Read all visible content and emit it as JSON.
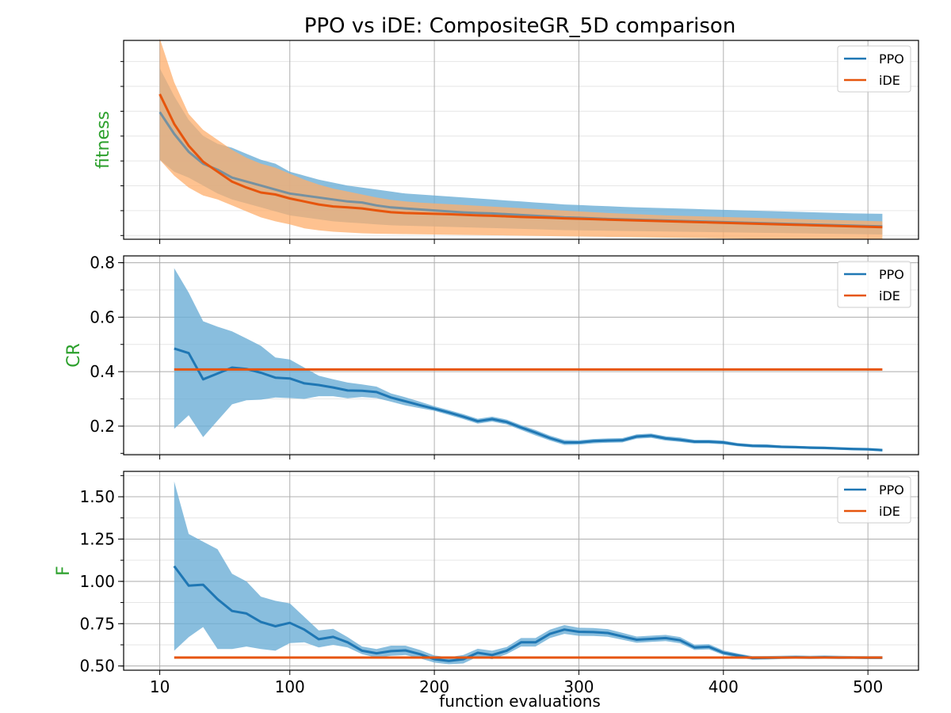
{
  "figure": {
    "title": "PPO vs iDE: CompositeGR_5D comparison",
    "xlabel": "function evaluations"
  },
  "colors": {
    "ppo": "#1f77b4",
    "ppo_band": "#6baed6",
    "ide": "#e6550d",
    "ide_band": "#fdae6b",
    "ylabel": "#2ca02c"
  },
  "chart_data": [
    {
      "type": "line",
      "ylabel": "fitness",
      "xlim": [
        -15,
        535
      ],
      "ylim": [
        0,
        100
      ],
      "xticks": [
        10,
        100,
        200,
        300,
        400,
        500
      ],
      "yticks": [],
      "show_xtick_labels": false,
      "grid": true,
      "legend": "top-right",
      "series": [
        {
          "name": "PPO",
          "x": [
            10,
            20,
            30,
            40,
            50,
            60,
            70,
            80,
            90,
            100,
            110,
            120,
            130,
            140,
            150,
            160,
            170,
            180,
            190,
            200,
            210,
            220,
            230,
            240,
            250,
            260,
            270,
            280,
            290,
            300,
            310,
            320,
            330,
            340,
            350,
            360,
            370,
            380,
            390,
            400,
            410,
            420,
            430,
            440,
            450,
            460,
            470,
            480,
            490,
            500,
            510
          ],
          "mean": [
            64,
            53,
            44,
            38,
            35,
            31,
            29,
            27,
            25,
            23,
            22,
            21,
            20,
            19,
            18.5,
            17,
            16,
            15.5,
            15,
            14.5,
            14,
            13.5,
            13.2,
            13,
            12.6,
            12.2,
            11.8,
            11.4,
            11,
            10.8,
            10.5,
            10.2,
            10,
            9.8,
            9.6,
            9.4,
            9.2,
            9,
            8.8,
            8.6,
            8.4,
            8.2,
            8,
            7.8,
            7.6,
            7.4,
            7.2,
            7,
            6.8,
            6.6,
            6.5
          ],
          "lower": [
            40,
            34,
            31,
            27,
            23,
            20,
            18,
            16,
            14,
            12,
            11,
            10,
            9,
            8.5,
            8,
            7.5,
            7,
            6.8,
            6.6,
            6.4,
            6.2,
            6,
            5.8,
            5.6,
            5.4,
            5.2,
            5,
            4.8,
            4.6,
            4.5,
            4.4,
            4.3,
            4.2,
            4.1,
            4,
            3.9,
            3.8,
            3.7,
            3.6,
            3.5,
            3.4,
            3.3,
            3.2,
            3.1,
            3,
            2.9,
            2.8,
            2.7,
            2.6,
            2.5,
            2.4
          ],
          "upper": [
            86,
            72,
            60,
            52,
            48,
            46,
            43,
            40,
            38,
            34,
            32,
            30,
            28.5,
            27,
            26,
            25,
            24,
            23,
            22.5,
            22,
            21.5,
            21,
            20.5,
            20,
            19.5,
            19,
            18.5,
            18,
            17.5,
            17.2,
            16.9,
            16.6,
            16.3,
            16,
            15.8,
            15.6,
            15.4,
            15.2,
            15,
            14.8,
            14.6,
            14.4,
            14.2,
            14,
            13.8,
            13.6,
            13.4,
            13.2,
            13,
            12.9,
            12.8
          ]
        },
        {
          "name": "iDE",
          "x": [
            10,
            20,
            30,
            40,
            50,
            60,
            70,
            80,
            90,
            100,
            110,
            120,
            130,
            140,
            150,
            160,
            170,
            180,
            190,
            200,
            210,
            220,
            230,
            240,
            250,
            260,
            270,
            280,
            290,
            300,
            310,
            320,
            330,
            340,
            350,
            360,
            370,
            380,
            390,
            400,
            410,
            420,
            430,
            440,
            450,
            460,
            470,
            480,
            490,
            500,
            510
          ],
          "mean": [
            73,
            58,
            47,
            39,
            34,
            29,
            26,
            23.5,
            22.5,
            20.5,
            19,
            17.5,
            16.5,
            16,
            15.5,
            14.5,
            13.6,
            13.2,
            13,
            12.8,
            12.6,
            12.3,
            12,
            11.8,
            11.5,
            11.2,
            11,
            10.8,
            10.5,
            10.3,
            10.1,
            9.9,
            9.7,
            9.5,
            9.3,
            9.1,
            8.9,
            8.7,
            8.5,
            8.3,
            8.1,
            7.9,
            7.7,
            7.5,
            7.3,
            7.1,
            6.9,
            6.7,
            6.5,
            6.3,
            6.1
          ],
          "lower": [
            40,
            32,
            26,
            22,
            20,
            17,
            14,
            11,
            9,
            7.5,
            5.5,
            4.5,
            3.8,
            3.4,
            3,
            2.8,
            2.7,
            2.6,
            2.5,
            2.4,
            2.3,
            2.2,
            2.1,
            2,
            1.9,
            1.8,
            1.7,
            1.6,
            1.5,
            1.4,
            1.3,
            1.2,
            1.1,
            1,
            0.9,
            0.8,
            0.7,
            0.6,
            0.5,
            0.4,
            0.3,
            0.2,
            0.2,
            0.2,
            0.2,
            0.2,
            0.2,
            0.2,
            0.2,
            0.2,
            0.2
          ],
          "upper": [
            101,
            79,
            63,
            55,
            50,
            45,
            41,
            38,
            36,
            33,
            30,
            27.5,
            25.5,
            24,
            22.5,
            21,
            19.8,
            19,
            18.4,
            18,
            17.6,
            17.2,
            16.8,
            16.4,
            16,
            15.6,
            15.2,
            14.8,
            14.4,
            14,
            13.6,
            13.2,
            12.9,
            12.6,
            12.3,
            12,
            11.8,
            11.6,
            11.4,
            11.2,
            11,
            10.8,
            10.6,
            10.4,
            10.2,
            10,
            9.8,
            9.6,
            9.4,
            9.2,
            9
          ]
        }
      ]
    },
    {
      "type": "line",
      "ylabel": "CR",
      "xlim": [
        -15,
        535
      ],
      "ylim": [
        0.095,
        0.825
      ],
      "xticks": [
        10,
        100,
        200,
        300,
        400,
        500
      ],
      "yticks": [
        0.2,
        0.4,
        0.6,
        0.8
      ],
      "ytick_labels": [
        "0.2",
        "0.4",
        "0.6",
        "0.8"
      ],
      "show_xtick_labels": false,
      "grid": true,
      "legend": "top-right",
      "series": [
        {
          "name": "PPO",
          "x": [
            20,
            30,
            40,
            50,
            60,
            70,
            80,
            90,
            100,
            110,
            120,
            130,
            140,
            150,
            160,
            170,
            180,
            190,
            200,
            210,
            220,
            230,
            240,
            250,
            260,
            270,
            280,
            290,
            300,
            310,
            320,
            330,
            340,
            350,
            360,
            370,
            380,
            390,
            400,
            410,
            420,
            430,
            440,
            450,
            460,
            470,
            480,
            490,
            500,
            510
          ],
          "mean": [
            0.485,
            0.468,
            0.372,
            0.393,
            0.415,
            0.41,
            0.396,
            0.378,
            0.375,
            0.357,
            0.351,
            0.342,
            0.331,
            0.33,
            0.325,
            0.305,
            0.291,
            0.277,
            0.264,
            0.25,
            0.235,
            0.218,
            0.226,
            0.215,
            0.195,
            0.176,
            0.156,
            0.14,
            0.14,
            0.145,
            0.147,
            0.148,
            0.162,
            0.165,
            0.155,
            0.15,
            0.143,
            0.143,
            0.14,
            0.132,
            0.128,
            0.127,
            0.124,
            0.123,
            0.121,
            0.12,
            0.118,
            0.116,
            0.115,
            0.112
          ],
          "lower": [
            0.19,
            0.24,
            0.16,
            0.22,
            0.28,
            0.295,
            0.297,
            0.305,
            0.303,
            0.3,
            0.31,
            0.31,
            0.302,
            0.307,
            0.303,
            0.29,
            0.276,
            0.266,
            0.256,
            0.241,
            0.226,
            0.209,
            0.217,
            0.206,
            0.186,
            0.166,
            0.147,
            0.131,
            0.132,
            0.137,
            0.139,
            0.14,
            0.154,
            0.157,
            0.147,
            0.142,
            0.136,
            0.136,
            0.133,
            0.126,
            0.122,
            0.121,
            0.119,
            0.118,
            0.116,
            0.115,
            0.113,
            0.111,
            0.11,
            0.107
          ],
          "upper": [
            0.78,
            0.69,
            0.585,
            0.565,
            0.548,
            0.522,
            0.495,
            0.452,
            0.445,
            0.415,
            0.385,
            0.372,
            0.36,
            0.353,
            0.345,
            0.32,
            0.306,
            0.29,
            0.273,
            0.259,
            0.244,
            0.227,
            0.235,
            0.224,
            0.204,
            0.186,
            0.165,
            0.149,
            0.148,
            0.153,
            0.155,
            0.156,
            0.17,
            0.173,
            0.163,
            0.158,
            0.15,
            0.15,
            0.147,
            0.138,
            0.134,
            0.133,
            0.129,
            0.128,
            0.126,
            0.125,
            0.123,
            0.121,
            0.12,
            0.117
          ]
        },
        {
          "name": "iDE",
          "x": [
            20,
            510
          ],
          "mean": [
            0.408,
            0.408
          ]
        }
      ]
    },
    {
      "type": "line",
      "ylabel": "F",
      "xlim": [
        -15,
        535
      ],
      "ylim": [
        0.475,
        1.65
      ],
      "xticks": [
        10,
        100,
        200,
        300,
        400,
        500
      ],
      "xtick_labels": [
        "10",
        "100",
        "200",
        "300",
        "400",
        "500"
      ],
      "yticks": [
        0.5,
        0.75,
        1.0,
        1.25,
        1.5
      ],
      "ytick_labels": [
        "0.50",
        "0.75",
        "1.00",
        "1.25",
        "1.50"
      ],
      "show_xtick_labels": true,
      "grid": true,
      "legend": "top-right",
      "series": [
        {
          "name": "PPO",
          "x": [
            20,
            30,
            40,
            50,
            60,
            70,
            80,
            90,
            100,
            110,
            120,
            130,
            140,
            150,
            160,
            170,
            180,
            190,
            200,
            210,
            220,
            230,
            240,
            250,
            260,
            270,
            280,
            290,
            300,
            310,
            320,
            330,
            340,
            350,
            360,
            370,
            380,
            390,
            400,
            410,
            420,
            430,
            440,
            450,
            460,
            470,
            480,
            490,
            500,
            510
          ],
          "mean": [
            1.09,
            0.975,
            0.98,
            0.895,
            0.825,
            0.81,
            0.76,
            0.735,
            0.755,
            0.715,
            0.658,
            0.672,
            0.64,
            0.59,
            0.575,
            0.588,
            0.592,
            0.57,
            0.54,
            0.53,
            0.54,
            0.578,
            0.565,
            0.59,
            0.64,
            0.64,
            0.69,
            0.715,
            0.702,
            0.7,
            0.695,
            0.675,
            0.655,
            0.66,
            0.665,
            0.652,
            0.61,
            0.613,
            0.578,
            0.562,
            0.547,
            0.548,
            0.55,
            0.552,
            0.55,
            0.552,
            0.55,
            0.55,
            0.549,
            0.549
          ],
          "lower": [
            0.59,
            0.67,
            0.73,
            0.6,
            0.6,
            0.615,
            0.6,
            0.59,
            0.635,
            0.64,
            0.61,
            0.625,
            0.61,
            0.57,
            0.55,
            0.56,
            0.565,
            0.545,
            0.52,
            0.51,
            0.515,
            0.555,
            0.54,
            0.57,
            0.615,
            0.615,
            0.665,
            0.69,
            0.678,
            0.677,
            0.673,
            0.655,
            0.637,
            0.642,
            0.647,
            0.634,
            0.595,
            0.598,
            0.565,
            0.551,
            0.537,
            0.538,
            0.541,
            0.543,
            0.541,
            0.543,
            0.541,
            0.542,
            0.541,
            0.541
          ],
          "upper": [
            1.59,
            1.28,
            1.235,
            1.19,
            1.045,
            1.0,
            0.91,
            0.885,
            0.87,
            0.79,
            0.71,
            0.72,
            0.67,
            0.615,
            0.6,
            0.62,
            0.62,
            0.595,
            0.562,
            0.552,
            0.565,
            0.602,
            0.59,
            0.612,
            0.665,
            0.665,
            0.715,
            0.742,
            0.726,
            0.724,
            0.718,
            0.696,
            0.674,
            0.679,
            0.684,
            0.671,
            0.626,
            0.629,
            0.592,
            0.574,
            0.558,
            0.559,
            0.56,
            0.562,
            0.56,
            0.562,
            0.56,
            0.559,
            0.558,
            0.558
          ]
        },
        {
          "name": "iDE",
          "x": [
            20,
            510
          ],
          "mean": [
            0.55,
            0.55
          ]
        }
      ]
    }
  ]
}
